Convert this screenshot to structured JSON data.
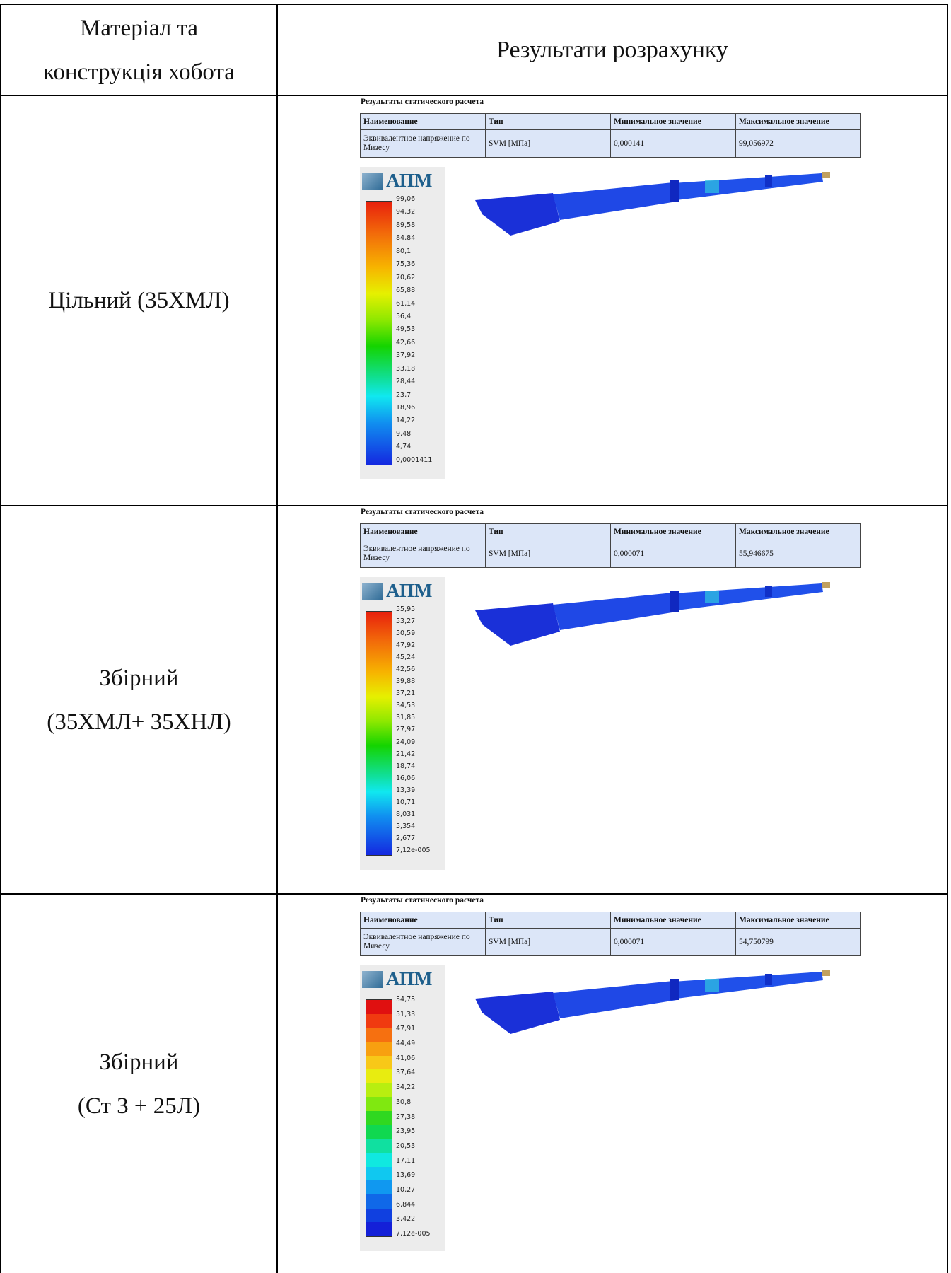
{
  "header": {
    "material": [
      "Матеріал та",
      "конструкція хобота"
    ],
    "results": "Результати розрахунку"
  },
  "rows": [
    {
      "material": [
        "Цільний (35ХМЛ)"
      ],
      "report": {
        "title": "Результаты статического расчета",
        "columns": [
          "Наименование",
          "Тип",
          "Минимальное значение",
          "Максимальное значение"
        ],
        "values": [
          "Эквивалентное напряжение по Мизесу",
          "SVM [МПа]",
          "0,000141",
          "99,056972"
        ],
        "legend": {
          "logo": "АПМ",
          "labels": [
            "99,06",
            "94,32",
            "89,58",
            "84,84",
            "80,1",
            "75,36",
            "70,62",
            "65,88",
            "61,14",
            "56,4",
            "49,53",
            "42,66",
            "37,92",
            "33,18",
            "28,44",
            "23,7",
            "18,96",
            "14,22",
            "9,48",
            "4,74",
            "0,0001411"
          ]
        }
      }
    },
    {
      "material": [
        "Збірний",
        "(35ХМЛ+ 35ХНЛ)"
      ],
      "report": {
        "title": "Результаты статического расчета",
        "columns": [
          "Наименование",
          "Тип",
          "Минимальное значение",
          "Максимальное значение"
        ],
        "values": [
          "Эквивалентное напряжение по Мизесу",
          "SVM [МПа]",
          "0,000071",
          "55,946675"
        ],
        "legend": {
          "logo": "АПМ",
          "labels": [
            "55,95",
            "53,27",
            "50,59",
            "47,92",
            "45,24",
            "42,56",
            "39,88",
            "37,21",
            "34,53",
            "31,85",
            "27,97",
            "24,09",
            "21,42",
            "18,74",
            "16,06",
            "13,39",
            "10,71",
            "8,031",
            "5,354",
            "2,677",
            "7,12e-005"
          ]
        }
      }
    },
    {
      "material": [
        "Збірний",
        "(Ст 3 + 25Л)"
      ],
      "report": {
        "title": "Результаты статического расчета",
        "columns": [
          "Наименование",
          "Тип",
          "Минимальное значение",
          "Максимальное значение"
        ],
        "values": [
          "Эквивалентное напряжение по Мизесу",
          "SVM [МПа]",
          "0,000071",
          "54,750799"
        ],
        "legend": {
          "logo": "АПМ",
          "labels": [
            "54,75",
            "51,33",
            "47,91",
            "44,49",
            "41,06",
            "37,64",
            "34,22",
            "30,8",
            "27,38",
            "23,95",
            "20,53",
            "17,11",
            "13,69",
            "10,27",
            "6,844",
            "3,422",
            "7,12e-005"
          ]
        }
      }
    }
  ]
}
